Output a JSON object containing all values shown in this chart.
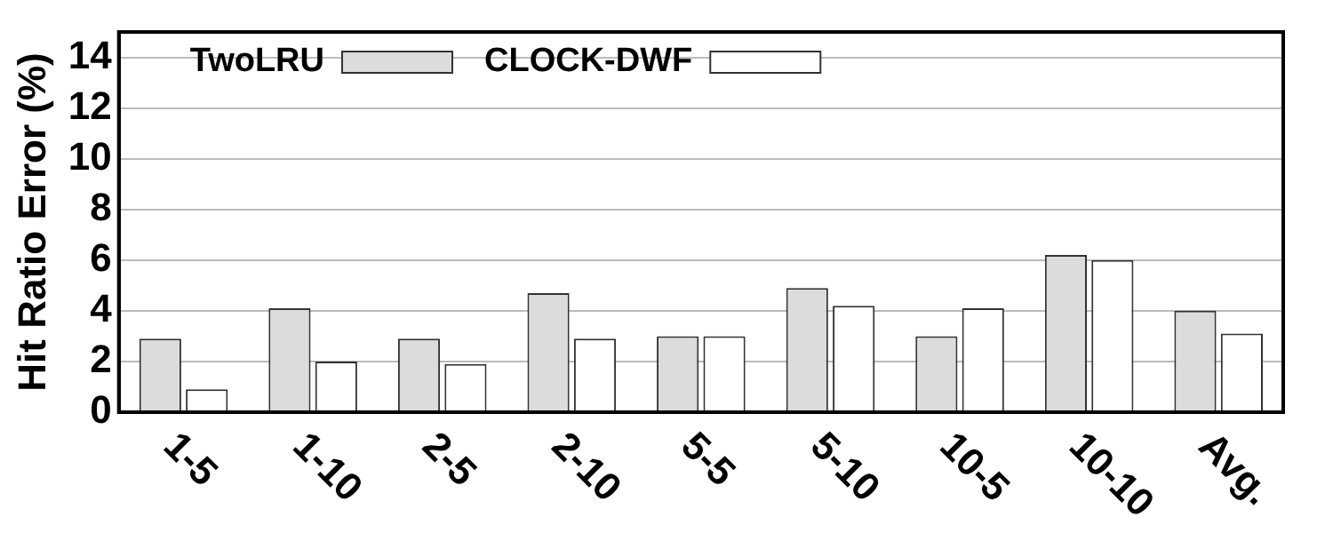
{
  "chart_data": {
    "type": "bar",
    "ylabel": "Hit Ratio Error (%)",
    "categories": [
      "1-5",
      "1-10",
      "2-5",
      "2-10",
      "5-5",
      "5-10",
      "10-5",
      "10-10",
      "Avg."
    ],
    "series": [
      {
        "name": "TwoLRU",
        "color": "#dcdcdc",
        "values": [
          2.9,
          4.1,
          2.9,
          4.7,
          3.0,
          4.9,
          3.0,
          6.2,
          4.0
        ]
      },
      {
        "name": "CLOCK-DWF",
        "color": "#ffffff",
        "values": [
          0.9,
          2.0,
          1.9,
          2.9,
          3.0,
          4.2,
          4.1,
          6.0,
          3.1
        ]
      }
    ],
    "ylim": [
      0,
      15
    ],
    "yticks": [
      0,
      2,
      4,
      6,
      8,
      10,
      12,
      14
    ],
    "grid": "y",
    "legend": "top left"
  }
}
